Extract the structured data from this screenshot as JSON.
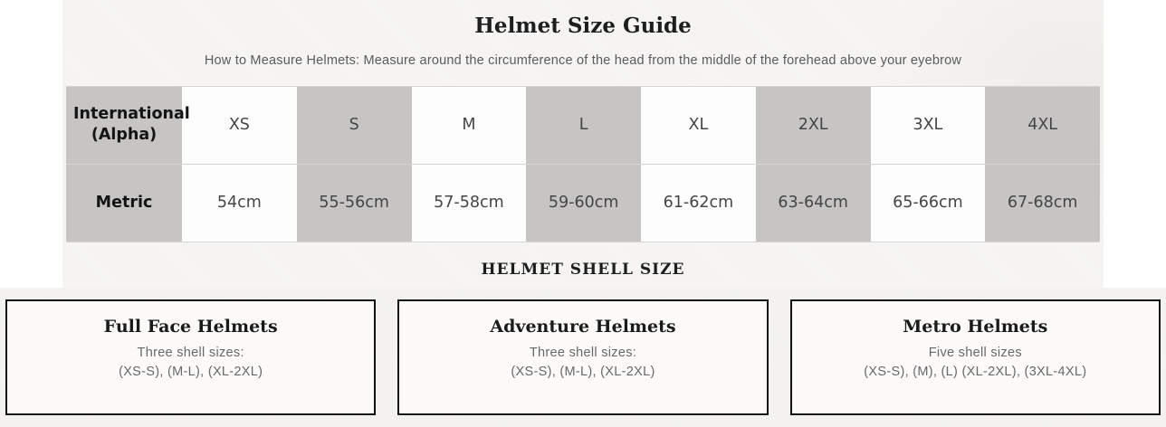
{
  "header": {
    "title": "Helmet Size Guide",
    "subtitle": "How to Measure Helmets: Measure around the circumference of the head from the middle of the forehead above your eyebrow"
  },
  "size_table": {
    "rows": [
      {
        "label": "International (Alpha)",
        "values": [
          "XS",
          "S",
          "M",
          "L",
          "XL",
          "2XL",
          "3XL",
          "4XL"
        ]
      },
      {
        "label": "Metric",
        "values": [
          "54cm",
          "55-56cm",
          "57-58cm",
          "59-60cm",
          "61-62cm",
          "63-64cm",
          "65-66cm",
          "67-68cm"
        ]
      }
    ]
  },
  "shell_section": {
    "heading": "HELMET SHELL SIZE",
    "cards": [
      {
        "title": "Full Face Helmets",
        "line1": "Three shell sizes:",
        "line2": "(XS-S), (M-L), (XL-2XL)"
      },
      {
        "title": "Adventure Helmets",
        "line1": "Three shell sizes:",
        "line2": "(XS-S), (M-L), (XL-2XL)"
      },
      {
        "title": "Metro Helmets",
        "line1": "Five shell sizes",
        "line2": "(XS-S), (M), (L) (XL-2XL), (3XL-4XL)"
      }
    ]
  },
  "colors": {
    "panel_bg": "#f6f5f3",
    "band_bg": "#f4f3f1",
    "gray_cell": "#c6c5c3",
    "white_cell": "#fdfdfd",
    "row_border": "#d6d5d3",
    "heading_text": "#1e1e1e",
    "body_text": "#5b5b5e",
    "card_border": "#131313"
  }
}
